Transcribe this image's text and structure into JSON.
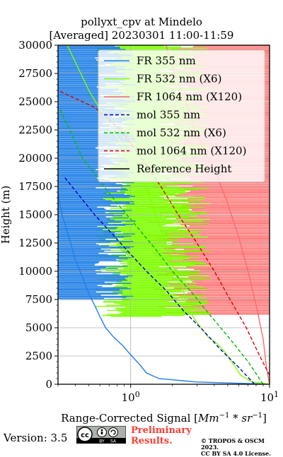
{
  "title_line1": "pollyxt_cpv at Mindelo",
  "title_line2": "[Averaged] 20230301 11:00-11:59",
  "footer": {
    "version": "Version: 3.5",
    "cc_badge": {
      "cc": "cc",
      "by": "BY",
      "sa": "SA"
    },
    "preliminary": "Preliminary",
    "results": "Results.",
    "copyright1": "© TROPOS & OSCM 2023.",
    "copyright2": "CC BY SA 4.0 License."
  },
  "chart_data": {
    "type": "line",
    "xlabel": "Range-Corrected Signal [Mm^{-1}*sr^{-1}]",
    "ylabel": "Height (m)",
    "xscale": "log",
    "xlim": [
      0.3,
      10
    ],
    "ylim": [
      0,
      30000
    ],
    "xticks": [
      1,
      10
    ],
    "xtick_labels": [
      "10^0",
      "10^1"
    ],
    "yticks": [
      0,
      2500,
      5000,
      7500,
      10000,
      12500,
      15000,
      17500,
      20000,
      22500,
      25000,
      27500,
      30000
    ],
    "grid": true,
    "legend_position": "top-right",
    "series": [
      {
        "name": "FR 355 nm",
        "color": "#1f7fe6",
        "style": "solid",
        "points": [
          [
            10,
            0
          ],
          [
            3.0,
            200
          ],
          [
            1.6,
            500
          ],
          [
            1.3,
            1000
          ],
          [
            1.15,
            1800
          ],
          [
            1.0,
            2600
          ],
          [
            0.88,
            3400
          ],
          [
            0.75,
            4200
          ],
          [
            0.66,
            5000
          ],
          [
            0.6,
            6000
          ],
          [
            0.55,
            7000
          ],
          [
            0.5,
            8000
          ],
          [
            0.45,
            9500
          ],
          [
            0.4,
            11000
          ],
          [
            0.36,
            13000
          ],
          [
            0.32,
            15000
          ],
          [
            0.3,
            17000
          ]
        ]
      },
      {
        "name": "FR 532 nm (X6)",
        "color": "#7fff00",
        "style": "solid",
        "points": [
          [
            10,
            0
          ],
          [
            7.5,
            200
          ],
          [
            6.2,
            800
          ],
          [
            5.6,
            1600
          ],
          [
            4.8,
            2800
          ],
          [
            4.2,
            3600
          ],
          [
            3.6,
            4200
          ],
          [
            3.2,
            5000
          ],
          [
            2.8,
            6000
          ],
          [
            2.5,
            7500
          ],
          [
            2.3,
            9000
          ],
          [
            2.0,
            10500
          ],
          [
            1.8,
            12500
          ],
          [
            1.5,
            15000
          ],
          [
            1.3,
            17500
          ],
          [
            1.0,
            20000
          ],
          [
            0.7,
            23000
          ],
          [
            0.5,
            26000
          ],
          [
            0.4,
            28500
          ],
          [
            0.35,
            30000
          ]
        ]
      },
      {
        "name": "FR 1064 nm (X120)",
        "color": "#ff6b6b",
        "style": "solid",
        "points": [
          [
            10,
            0
          ],
          [
            9.5,
            1500
          ],
          [
            9.0,
            4000
          ],
          [
            8.0,
            7000
          ],
          [
            7.0,
            10000
          ],
          [
            6.0,
            13000
          ],
          [
            5.0,
            16000
          ],
          [
            4.0,
            19000
          ],
          [
            3.0,
            22000
          ],
          [
            2.5,
            25000
          ],
          [
            2.0,
            28000
          ],
          [
            1.8,
            30000
          ]
        ]
      },
      {
        "name": "mol 355 nm",
        "color": "#0000cc",
        "style": "dashed",
        "points": [
          [
            7.8,
            0
          ],
          [
            6.0,
            1500
          ],
          [
            4.5,
            3000
          ],
          [
            3.3,
            4800
          ],
          [
            2.4,
            6500
          ],
          [
            1.8,
            8300
          ],
          [
            1.3,
            10000
          ],
          [
            1.0,
            11500
          ],
          [
            0.75,
            13200
          ],
          [
            0.55,
            15000
          ],
          [
            0.42,
            16800
          ],
          [
            0.33,
            18400
          ]
        ]
      },
      {
        "name": "mol 532 nm (X6)",
        "color": "#00bb00",
        "style": "dashed",
        "points": [
          [
            9.0,
            0
          ],
          [
            7.0,
            2000
          ],
          [
            5.2,
            4000
          ],
          [
            3.8,
            6000
          ],
          [
            2.8,
            8000
          ],
          [
            2.0,
            10000
          ],
          [
            1.5,
            12000
          ],
          [
            1.1,
            14000
          ],
          [
            0.8,
            16000
          ],
          [
            0.6,
            18000
          ],
          [
            0.45,
            20000
          ],
          [
            0.38,
            22000
          ],
          [
            0.31,
            24300
          ]
        ]
      },
      {
        "name": "mol 1064 nm (X120)",
        "color": "#dd0000",
        "style": "dashed",
        "points": [
          [
            10,
            800
          ],
          [
            8.5,
            2500
          ],
          [
            6.8,
            5000
          ],
          [
            5.2,
            7500
          ],
          [
            4.0,
            10000
          ],
          [
            3.0,
            12500
          ],
          [
            2.2,
            15000
          ],
          [
            1.65,
            17500
          ],
          [
            1.2,
            20000
          ],
          [
            0.85,
            22500
          ],
          [
            0.55,
            24500
          ],
          [
            0.3,
            26000
          ]
        ]
      },
      {
        "name": "Reference Height",
        "color": "#000000",
        "style": "solid",
        "points": []
      }
    ]
  }
}
